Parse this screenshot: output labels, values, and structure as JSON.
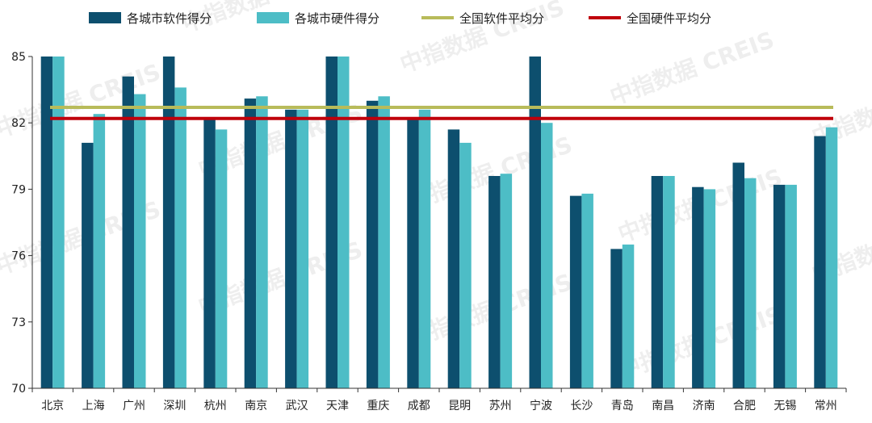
{
  "chart_data": {
    "type": "bar",
    "categories": [
      "北京",
      "上海",
      "广州",
      "深圳",
      "杭州",
      "南京",
      "武汉",
      "天津",
      "重庆",
      "成都",
      "昆明",
      "苏州",
      "宁波",
      "长沙",
      "青岛",
      "南昌",
      "济南",
      "合肥",
      "无锡",
      "常州"
    ],
    "series": [
      {
        "name": "各城市软件得分",
        "color": "#0d4f6e",
        "values": [
          85,
          81.1,
          84.1,
          85,
          82.2,
          83.1,
          82.6,
          85,
          83,
          82.2,
          81.7,
          79.6,
          85,
          78.7,
          76.3,
          79.6,
          79.1,
          80.2,
          79.2,
          81.4
        ]
      },
      {
        "name": "各城市硬件得分",
        "color": "#4dbdc6",
        "values": [
          85,
          82.4,
          83.3,
          83.6,
          81.7,
          83.2,
          82.6,
          85,
          83.2,
          82.6,
          81.1,
          79.7,
          82,
          78.8,
          76.5,
          79.6,
          79,
          79.5,
          79.2,
          81.8
        ]
      }
    ],
    "reference_lines": [
      {
        "name": "全国软件平均分",
        "value": 82.7,
        "color": "#b8bb5a"
      },
      {
        "name": "全国硬件平均分",
        "value": 82.2,
        "color": "#c0000b"
      }
    ],
    "ylim": [
      70,
      85
    ],
    "yticks": [
      70,
      73,
      76,
      79,
      82,
      85
    ],
    "title": "",
    "xlabel": "",
    "ylabel": "",
    "grid": false,
    "legend_position": "top"
  },
  "watermark": "中指数据 CREIS"
}
